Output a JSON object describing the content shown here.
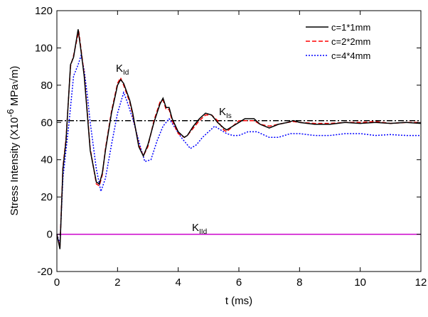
{
  "chart_data": {
    "type": "line",
    "xlabel": "t (ms)",
    "ylabel": {
      "main": "Stress Intensity (X10",
      "sup": "-6",
      "unit": " MPa√m)"
    },
    "xlim": [
      0,
      12
    ],
    "xticks": [
      0,
      2,
      4,
      6,
      8,
      10,
      12
    ],
    "ylim": [
      -20,
      120
    ],
    "yticks": [
      -20,
      0,
      20,
      40,
      60,
      80,
      100,
      120
    ],
    "legend": "top-right",
    "series": [
      {
        "name": "c=1*1mm",
        "color": "#000000",
        "dash": "solid",
        "x": [
          0,
          0.1,
          0.2,
          0.3,
          0.45,
          0.55,
          0.7,
          0.8,
          0.9,
          1.0,
          1.1,
          1.3,
          1.4,
          1.5,
          1.6,
          1.8,
          2.0,
          2.1,
          2.2,
          2.4,
          2.5,
          2.7,
          2.85,
          3.0,
          3.2,
          3.4,
          3.5,
          3.6,
          3.7,
          3.8,
          4.0,
          4.2,
          4.3,
          4.5,
          4.7,
          4.9,
          5.1,
          5.3,
          5.5,
          5.6,
          5.8,
          6.0,
          6.2,
          6.5,
          6.7,
          7.0,
          7.3,
          7.6,
          7.8,
          8.0,
          8.5,
          9.0,
          9.5,
          10.0,
          10.5,
          11.0,
          11.5,
          12.0
        ],
        "values": [
          0,
          -8,
          35,
          50,
          91,
          95,
          110,
          98,
          85,
          65,
          45,
          28,
          27,
          33,
          45,
          65,
          80,
          83,
          81,
          72,
          65,
          47,
          42,
          48,
          60,
          70,
          73,
          68,
          68,
          62,
          55,
          52,
          53,
          58,
          62,
          65,
          64,
          60,
          57,
          56,
          58,
          60,
          62,
          62,
          59,
          57,
          59,
          60,
          61,
          60,
          59,
          59,
          60,
          59.5,
          60,
          59.5,
          60,
          59.5
        ]
      },
      {
        "name": "c=2*2mm",
        "color": "#ff0000",
        "dash": "dashed",
        "x": [
          0,
          0.1,
          0.2,
          0.3,
          0.45,
          0.55,
          0.72,
          0.8,
          0.9,
          1.0,
          1.1,
          1.3,
          1.4,
          1.5,
          1.6,
          1.8,
          2.0,
          2.1,
          2.2,
          2.4,
          2.5,
          2.7,
          2.85,
          3.0,
          3.2,
          3.4,
          3.5,
          3.6,
          3.7,
          3.8,
          4.0,
          4.2,
          4.3,
          4.5,
          4.7,
          4.9,
          5.1,
          5.3,
          5.5,
          5.6,
          5.8,
          6.0,
          6.2,
          6.5,
          6.7,
          7.0,
          7.3,
          7.6,
          7.8,
          8.0,
          8.5,
          9.0,
          9.5,
          10.0,
          10.5,
          11.0,
          11.5,
          12.0
        ],
        "values": [
          0,
          -7,
          36,
          51,
          90,
          96,
          109,
          99,
          86,
          66,
          46,
          27,
          26,
          32,
          46,
          66,
          81,
          84,
          80,
          71,
          64,
          48,
          42,
          47,
          61,
          71,
          72,
          67,
          67,
          61,
          54,
          52,
          53,
          57,
          61,
          64,
          64,
          61,
          56,
          55,
          58,
          61,
          61,
          61,
          59,
          58,
          59,
          60,
          60.5,
          60,
          59.5,
          59.5,
          60,
          60,
          60.5,
          59.5,
          60,
          60
        ]
      },
      {
        "name": "c=4*4mm",
        "color": "#0000ff",
        "dash": "dotted",
        "x": [
          0,
          0.1,
          0.2,
          0.4,
          0.55,
          0.7,
          0.8,
          0.9,
          1.0,
          1.1,
          1.3,
          1.45,
          1.6,
          1.8,
          2.0,
          2.2,
          2.3,
          2.5,
          2.7,
          2.9,
          3.1,
          3.3,
          3.5,
          3.7,
          3.9,
          4.1,
          4.3,
          4.4,
          4.6,
          4.8,
          5.0,
          5.2,
          5.4,
          5.6,
          5.8,
          6.0,
          6.3,
          6.6,
          7.0,
          7.3,
          7.7,
          8.0,
          8.5,
          9.0,
          9.5,
          10.0,
          10.5,
          11.0,
          11.5,
          12.0
        ],
        "values": [
          0,
          -5,
          30,
          60,
          85,
          91,
          96,
          88,
          75,
          60,
          35,
          23,
          30,
          48,
          65,
          76,
          72,
          62,
          50,
          39,
          40,
          50,
          58,
          62,
          57,
          52,
          48,
          46,
          48,
          52,
          55,
          58,
          56,
          54,
          53,
          53,
          55,
          55,
          52,
          52,
          54,
          54,
          53,
          53,
          54,
          54,
          53,
          53.5,
          53,
          53
        ]
      },
      {
        "color": "#cc00cc",
        "dash": "solid",
        "x": [
          0,
          12
        ],
        "values": [
          0,
          0
        ]
      },
      {
        "color": "#000000",
        "dash": "dashdot",
        "x": [
          0,
          12
        ],
        "values": [
          61,
          61
        ]
      }
    ],
    "annotations": [
      {
        "text": "K",
        "sub": "Id"
      },
      {
        "text": "K",
        "sub": "Is"
      },
      {
        "text": "K",
        "sub": "IId"
      }
    ]
  }
}
